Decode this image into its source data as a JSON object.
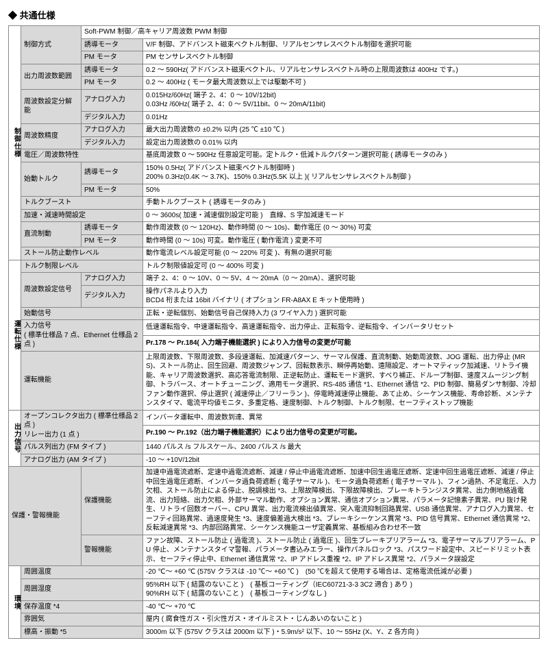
{
  "title": "◆ 共通仕様",
  "cats": {
    "ctrl": "制御仕様",
    "op": "運転仕様",
    "out": "出力信号",
    "prot": "保護・警報機能",
    "env": "環境"
  },
  "r": {
    "ctrl_method_l": "制御方式",
    "ctrl_method_v": "Soft-PWM 制御／高キャリア周波数 PWM 制御",
    "ind_motor": "誘導モータ",
    "pm_motor": "PM モータ",
    "ctrl_ind": "V/F 制御、アドバンスト磁束ベクトル制御、リアルセンサレスベクトル制御を選択可能",
    "ctrl_pm": "PM センサレスベクトル制御",
    "ofreq_l": "出力周波数範囲",
    "ofreq_ind": "0.2 ～ 590Hz( アドバンスト磁束ベクトル、リアルセンサレスベクトル時の上限周波数は 400Hz です。)",
    "ofreq_pm": "0.2 ～ 400Hz ( モータ最大周波数以上では駆動不可 )",
    "fres_l": "周波数設定分解能",
    "analog_in": "アナログ入力",
    "digital_in": "デジタル入力",
    "fres_a": "0.015Hz/60Hz( 端子 2、4：0 ～ 10V/12bit)\n0.03Hz /60Hz( 端子 2、4：0 ～ 5V/11bit、0 ～ 20mA/11bit)",
    "fres_d": "0.01Hz",
    "facc_l": "周波数精度",
    "facc_a": "最大出力周波数の ±0.2% 以内 (25 ℃ ±10 ℃ )",
    "facc_d": "設定出力周波数の 0.01% 以内",
    "vf_l": "電圧／周波数特性",
    "vf_v": "基底周波数 0 ～ 590Hz 任意設定可能。定トルク・低減トルクパターン選択可能 ( 誘導モータのみ )",
    "strq_l": "始動トルク",
    "strq_ind": "150% 0.5Hz( アドバンスト磁束ベクトル制御時 )\n200% 0.3Hz(0.4K ～ 3.7K)、150% 0.3Hz(5.5K 以上 )( リアルセンサレスベクトル制御 )",
    "strq_pm": "50%",
    "tboost_l": "トルクブースト",
    "tboost_v": "手動トルクブースト ( 誘導モータのみ )",
    "accdec_l": "加速・減速時間設定",
    "accdec_v": "0 ～ 3600s( 加速・減速個別設定可能 )　直線、S 字加減速モード",
    "dcbrk_l": "直流制動",
    "dcbrk_ind": "動作周波数 (0 ～ 120Hz)、動作時間 (0 ～ 10s)、動作電圧 (0 ～ 30%) 可変",
    "dcbrk_pm": "動作時間 (0 ～ 10s) 可変。動作電圧 ( 動作電流 ) 変更不可",
    "stall_l": "ストール防止動作レベル",
    "stall_v": "動作電流レベル設定可能 (0 ～ 220% 可変 )、有無の選択可能",
    "tlim_l": "トルク制限レベル",
    "tlim_v": "トルク制限値設定可 (0 ～ 400% 可変 )",
    "fset_l": "周波数設定信号",
    "fset_a": "端子 2、4：0 ～ 10V、0 ～ 5V、4 ～ 20mA（0 ～ 20mA）、選択可能",
    "fset_d": "操作パネルより入力\nBCD4 桁または 16bit バイナリ ( オプション FR-A8AX E キット使用時 )",
    "ssig_l": "始動信号",
    "ssig_v": "正転・逆転個別、始動信号自己保持入力 (3 ワイヤ入力 ) 選択可能",
    "insig_l": "入力信号\n( 標準仕様品 7 点、Ethernet 仕様品 2 点 )",
    "insig_v1": "低速運転指令、中速運転指令、高速運転指令、出力停止、正転指令、逆転指令、インバータリセット",
    "insig_v2": "Pr.178 ～ Pr.184( 入力端子機能選択 ) により入力信号の変更が可能",
    "opfn_l": "運転機能",
    "opfn_v": "上限周波数、下限周波数、多段速運転、加減速パターン、サーマル保護、直流制動、始動周波数、JOG 運転、出力停止 (MRS)、ストール防止、回生回避、周波数ジャンプ、回転数表示、瞬停再始動、遠隔設定、オートマティック加減速、リトライ機能、キャリア周波数選択、高応答電流制限、正逆転防止、運転モード選択、すべり補正、ドループ制御、速度スムージング制御、トラバース、オートチューニング、適用モータ選択、RS-485 通信 *1、Ethernet 通信 *2、PID 制御、簡易ダンサ制御、冷却ファン動作選択、停止選択 ( 減速停止／フリーラン )、停電時減速停止機能、あて止め、シーケンス機能、寿命診断、メンテナンスタイマ、電流平均値モニタ、多重定格、速度制御、トルク制御、トルク制限、セーフティストップ機能",
    "oc_l": "オープンコレクタ出力 ( 標準仕様品 2 点 )\nリレー出力 (1 点 )",
    "oc_v1": "インバータ運転中、周波数到達、異常",
    "oc_v2": "Pr.190 ～ Pr.192（出力端子機能選択）により出力信号の変更が可能。",
    "pulse_l": "パルス列出力 (FM タイプ )",
    "pulse_v": "1440 パルス /s フルスケール、2400 パルス /s 最大",
    "aout_l": "アナログ出力 (AM タイプ )",
    "aout_v": "-10 ～ +10V/12bit",
    "prot_l": "保護機能",
    "prot_v": "加速中過電流遮断、定速中過電流遮断、減速 / 停止中過電流遮断、加速中回生過電圧遮断、定速中回生過電圧遮断、減速 / 停止中回生過電圧遮断、インバータ過負荷遮断 ( 電子サーマル )、モータ過負荷遮断 ( 電子サーマル )、フィン過熱、不足電圧、入力欠相、ストール防止による停止、脱調検出 *3、上限故障検出、下限故障検出、ブレーキトランジスタ異常、出力側地絡過電流、出力短絡、出力欠相、外部サーマル動作、オプション異常、通信オプション異常、パラメータ記憶素子異常、PU 抜け発生、リトライ回数オーバー、CPU 異常、出力電流検出値異常、突入電流抑制回路異常、USB 通信異常、アナログ入力異常、セーフティ回路異常、過速度発生 *3、速度偏差過大検出 *3、ブレーキシーケンス異常 *3、PID 信号異常、Ethernet 通信異常 *2、反転減速異常 *3、内部回路異常、シーケンス機能ユーザ定義異常、基板組み合わせ不一致",
    "warn_l": "警報機能",
    "warn_v": "ファン故障、ストール防止 ( 過電流 )、ストール防止 ( 過電圧 )、回生ブレーキプリアラーム *3、電子サーマルプリアラーム、PU 停止、メンテナンスタイマ警報、パラメータ書込みエラー、操作パネルロック *3、パスワード設定中、スピードリミット表示、セーフティ停止中、Ethernet 通信異常 *2、IP アドレス重複 *2、IP アドレス異常 *2、パラメータ誤設定",
    "atemp_l": "周囲温度",
    "atemp_v": "-20 ℃～ +60 ℃ (575V クラスは -10 ℃～ +60 ℃ )　(50 ℃を超えて使用する場合は、定格電流低減が必要 )",
    "ahum_l": "周囲湿度",
    "ahum_v": "95%RH 以下 ( 結露のないこと )　( 基板コーティング（IEC60721-3-3 3C2 適合 ) あり )\n90%RH 以下 ( 結露のないこと )　( 基板コーティングなし )",
    "stemp_l": "保存温度 *4",
    "stemp_v": "-40 ℃～ +70 ℃",
    "atm_l": "雰囲気",
    "atm_v": "屋内 ( 腐食性ガス・引火性ガス・オイルミスト・じんあいのないこと )",
    "alt_l": "標高・振動 *5",
    "alt_v": "3000m 以下 (575V クラスは 2000m 以下 )・5.9m/s² 以下、10 ～ 55Hz (X、Y、Z 各方向 )"
  }
}
